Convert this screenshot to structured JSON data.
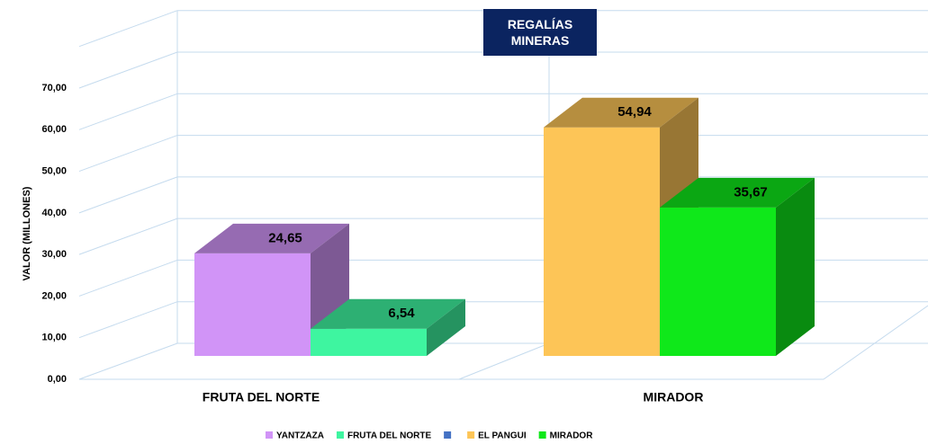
{
  "chart_data": {
    "type": "bar3d",
    "title": "REGALÍAS MINERAS",
    "y_label": "VALOR (MILLONES)",
    "categories": [
      "FRUTA DEL NORTE",
      "MIRADOR"
    ],
    "series": [
      {
        "name": "YANTZAZA",
        "color": "#d194f7",
        "values": [
          24.65,
          null
        ],
        "value_labels": [
          "24,65",
          null
        ]
      },
      {
        "name": "FRUTA DEL NORTE",
        "color": "#3ef5a0",
        "values": [
          6.54,
          null
        ],
        "value_labels": [
          "6,54",
          null
        ]
      },
      {
        "name": null,
        "color": "#4472c4",
        "values": [
          null,
          null
        ]
      },
      {
        "name": "EL PANGUI",
        "color": "#fdc557",
        "values": [
          null,
          54.94
        ],
        "value_labels": [
          null,
          "54,94"
        ]
      },
      {
        "name": "MIRADOR",
        "color": "#0fe81a",
        "values": [
          null,
          35.67
        ],
        "value_labels": [
          null,
          "35,67"
        ]
      }
    ],
    "ylim": [
      0,
      80
    ],
    "yticks": [
      {
        "value": 0,
        "label": "0,00"
      },
      {
        "value": 10,
        "label": "10,00"
      },
      {
        "value": 20,
        "label": "20,00"
      },
      {
        "value": 30,
        "label": "30,00"
      },
      {
        "value": 40,
        "label": "40,00"
      },
      {
        "value": 50,
        "label": "50,00"
      },
      {
        "value": 60,
        "label": "60,00"
      },
      {
        "value": 70,
        "label": "70,00"
      }
    ],
    "grid": true
  }
}
